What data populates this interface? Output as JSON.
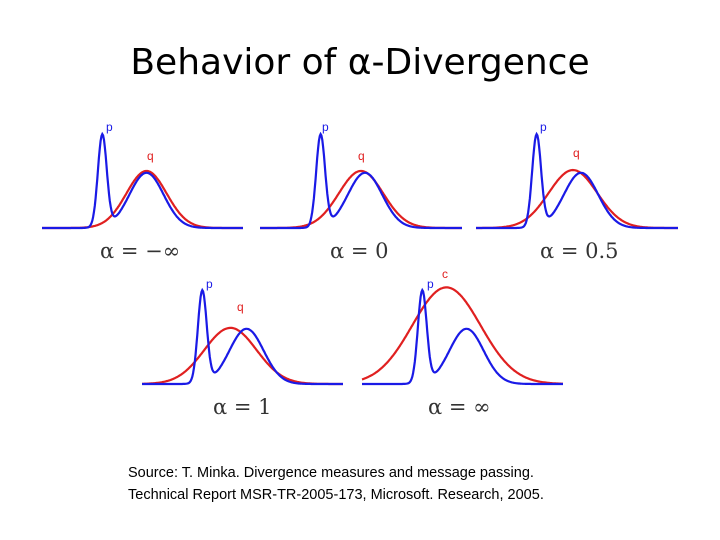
{
  "slide": {
    "title": "Behavior of α-Divergence",
    "source_lines": [
      "Source: T. Minka. Divergence measures and message passing.",
      "Technical Report MSR-TR-2005-173, Microsoft. Research, 2005."
    ]
  },
  "colors": {
    "p": "#1a1ae6",
    "q": "#e02020",
    "text": "#333333"
  },
  "panels": [
    {
      "alpha_label": "α = −∞",
      "labels": [
        "p",
        "q"
      ]
    },
    {
      "alpha_label": "α = 0",
      "labels": [
        "p",
        "q"
      ]
    },
    {
      "alpha_label": "α = 0.5",
      "labels": [
        "p",
        "q"
      ]
    },
    {
      "alpha_label": "α = 1",
      "labels": [
        "p",
        "q"
      ]
    },
    {
      "alpha_label": "α = ∞",
      "labels": [
        "p",
        "c"
      ]
    }
  ]
}
